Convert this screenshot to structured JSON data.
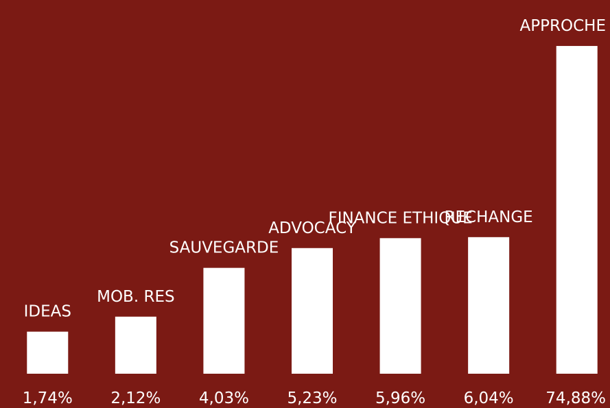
{
  "chart_data": {
    "type": "bar",
    "categories": [
      "IDEAS",
      "MOB. RES",
      "SAUVEGARDE",
      "ADVOCACY",
      "FINANCE ETHIQUE",
      "RECHANGE",
      "APPROCHE"
    ],
    "values": [
      1.74,
      2.12,
      4.03,
      5.23,
      5.96,
      6.04,
      74.88
    ],
    "value_labels": [
      "1,74%",
      "2,12%",
      "4,03%",
      "5,23%",
      "5,96%",
      "6,04%",
      "74,88%"
    ],
    "color": "#ffffff",
    "log_scale": true,
    "ylim": [
      1,
      100
    ]
  }
}
